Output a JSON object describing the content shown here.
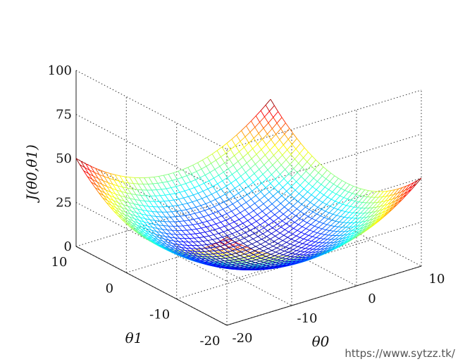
{
  "chart_data": {
    "type": "surface",
    "zlabel": "J(θ0,θ1)",
    "xlabel": "θ0",
    "ylabel": "θ1",
    "x_range": [
      -20,
      10
    ],
    "y_range": [
      -20,
      10
    ],
    "zlim": [
      0,
      100
    ],
    "xticks": [
      "-20",
      "-10",
      "0",
      "10"
    ],
    "yticks": [
      "-20",
      "-10",
      "0",
      "10"
    ],
    "zticks": [
      "0",
      "25",
      "50",
      "75",
      "100"
    ],
    "surface_min": {
      "x": -5,
      "y": -5,
      "z": 0
    },
    "corner_values": [
      {
        "x": -20,
        "y": 10,
        "z": 50
      },
      {
        "x": -20,
        "y": -20,
        "z": 50
      },
      {
        "x": 10,
        "y": 10,
        "z": 50
      },
      {
        "x": 10,
        "y": -20,
        "z": 50
      }
    ],
    "colormap": "jet",
    "grid": true
  },
  "watermark": "https://www.sytzz.tk/"
}
